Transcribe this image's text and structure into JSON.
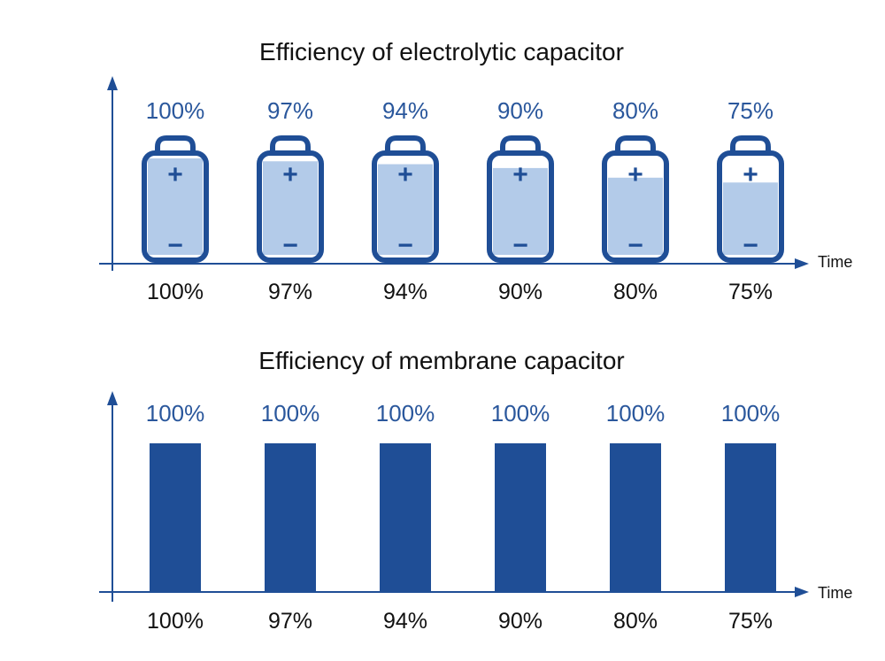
{
  "colors": {
    "accent": "#1f4e96",
    "fill_light": "#b3cbe9",
    "label_blue": "#2a579c",
    "text": "#111111"
  },
  "chart_data": [
    {
      "type": "bar",
      "style": "battery-icon",
      "title": "Efficiency of electrolytic capacitor",
      "xlabel": "Time",
      "categories": [
        "100%",
        "97%",
        "94%",
        "90%",
        "80%",
        "75%"
      ],
      "values": [
        100,
        97,
        94,
        90,
        80,
        75
      ],
      "value_labels": [
        "100%",
        "97%",
        "94%",
        "90%",
        "80%",
        "75%"
      ],
      "ylim": [
        0,
        100
      ],
      "grid": false,
      "battery_symbols": {
        "plus": "+",
        "minus": "−"
      }
    },
    {
      "type": "bar",
      "title": "Efficiency of membrane capacitor",
      "xlabel": "Time",
      "categories": [
        "100%",
        "97%",
        "94%",
        "90%",
        "80%",
        "75%"
      ],
      "values": [
        100,
        100,
        100,
        100,
        100,
        100
      ],
      "value_labels": [
        "100%",
        "100%",
        "100%",
        "100%",
        "100%",
        "100%"
      ],
      "ylim": [
        0,
        100
      ],
      "grid": false
    }
  ]
}
